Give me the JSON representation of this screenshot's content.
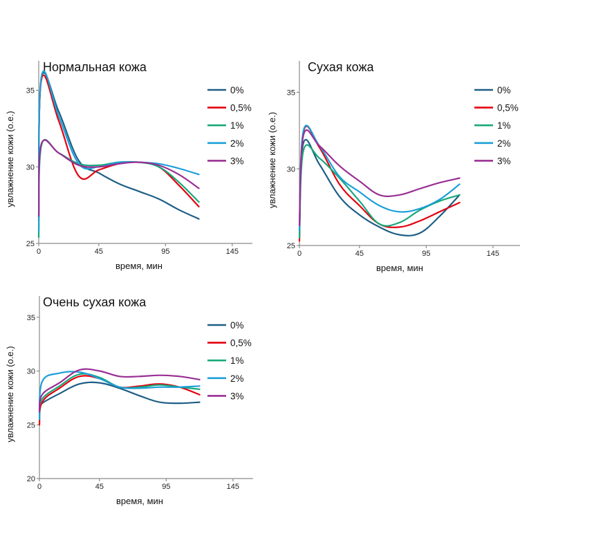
{
  "chart_data": [
    {
      "type": "line",
      "title": "Нормальная кожа",
      "xlabel": "время, мин",
      "ylabel": "увлажнение кожи (о.е.)",
      "xticks": [
        "0",
        "45",
        "95",
        "145"
      ],
      "yticks": [
        "25",
        "30",
        "35"
      ],
      "xlim": [
        0,
        160
      ],
      "ylim": [
        25,
        37
      ],
      "legend": "top-right",
      "x": [
        0,
        2,
        15,
        30,
        45,
        60,
        75,
        90,
        105,
        120
      ],
      "series": [
        {
          "name": "0%",
          "color": "#1d5e86",
          "values": [
            26.7,
            35.8,
            33.6,
            30.4,
            29.6,
            28.9,
            28.4,
            27.9,
            27.2,
            26.6
          ]
        },
        {
          "name": "0,5%",
          "color": "#e3000f",
          "values": [
            26.5,
            35.7,
            33.0,
            29.4,
            29.8,
            30.2,
            30.3,
            30.0,
            28.8,
            27.4
          ]
        },
        {
          "name": "1%",
          "color": "#17a87a",
          "values": [
            25.4,
            31.4,
            30.9,
            30.2,
            30.1,
            30.3,
            30.3,
            30.0,
            29.0,
            27.7
          ]
        },
        {
          "name": "2%",
          "color": "#1c9fd9",
          "values": [
            25.8,
            35.9,
            33.3,
            30.2,
            30.0,
            30.3,
            30.3,
            30.2,
            29.9,
            29.5
          ]
        },
        {
          "name": "3%",
          "color": "#992f94",
          "values": [
            26.8,
            31.5,
            30.9,
            30.1,
            30.0,
            30.2,
            30.3,
            30.1,
            29.5,
            28.6
          ]
        }
      ]
    },
    {
      "type": "line",
      "title": "Сухая кожа",
      "xlabel": "время, мин",
      "ylabel": "увлажнение кожи (о.е.)",
      "xticks": [
        "0",
        "45",
        "95",
        "145"
      ],
      "yticks": [
        "25",
        "30",
        "35"
      ],
      "xlim": [
        0,
        160
      ],
      "ylim": [
        25,
        37
      ],
      "legend": "top-right",
      "x": [
        0,
        3,
        15,
        30,
        45,
        60,
        75,
        90,
        105,
        120
      ],
      "series": [
        {
          "name": "0%",
          "color": "#1d5e86",
          "values": [
            26.0,
            31.7,
            30.3,
            28.2,
            27.0,
            26.2,
            25.7,
            25.8,
            26.9,
            28.3
          ]
        },
        {
          "name": "0,5%",
          "color": "#e3000f",
          "values": [
            25.3,
            32.4,
            31.4,
            29.0,
            27.6,
            26.4,
            26.2,
            26.6,
            27.2,
            27.8
          ]
        },
        {
          "name": "1%",
          "color": "#17a87a",
          "values": [
            25.5,
            31.2,
            30.7,
            29.4,
            27.9,
            26.4,
            26.5,
            27.3,
            27.9,
            28.3
          ]
        },
        {
          "name": "2%",
          "color": "#1c9fd9",
          "values": [
            26.0,
            32.5,
            31.5,
            29.5,
            28.5,
            27.6,
            27.2,
            27.4,
            28.0,
            29.0
          ]
        },
        {
          "name": "3%",
          "color": "#992f94",
          "values": [
            26.3,
            32.2,
            31.5,
            30.2,
            29.2,
            28.3,
            28.3,
            28.7,
            29.1,
            29.4
          ]
        }
      ]
    },
    {
      "type": "line",
      "title": "Очень сухая кожа",
      "xlabel": "время, мин",
      "ylabel": "увлажнение кожи (о.е.)",
      "xticks": [
        "0",
        "45",
        "95",
        "145"
      ],
      "yticks": [
        "20",
        "25",
        "30",
        "35"
      ],
      "xlim": [
        0,
        160
      ],
      "ylim": [
        20,
        37
      ],
      "legend": "top-right",
      "x": [
        0,
        2,
        15,
        30,
        45,
        60,
        75,
        90,
        105,
        120
      ],
      "series": [
        {
          "name": "0%",
          "color": "#1d5e86",
          "values": [
            26.5,
            27.0,
            27.9,
            28.8,
            28.9,
            28.4,
            27.7,
            27.1,
            27.0,
            27.1
          ]
        },
        {
          "name": "0,5%",
          "color": "#e3000f",
          "values": [
            25.0,
            27.1,
            28.4,
            29.5,
            29.3,
            28.5,
            28.6,
            28.8,
            28.5,
            27.8
          ]
        },
        {
          "name": "1%",
          "color": "#17a87a",
          "values": [
            26.0,
            27.4,
            28.6,
            29.7,
            29.4,
            28.5,
            28.5,
            28.7,
            28.5,
            28.3
          ]
        },
        {
          "name": "2%",
          "color": "#1c9fd9",
          "values": [
            25.5,
            29.0,
            29.8,
            29.9,
            29.3,
            28.5,
            28.4,
            28.5,
            28.5,
            28.6
          ]
        },
        {
          "name": "3%",
          "color": "#992f94",
          "values": [
            26.2,
            27.8,
            28.9,
            30.1,
            30.0,
            29.5,
            29.5,
            29.6,
            29.5,
            29.2
          ]
        }
      ]
    }
  ]
}
